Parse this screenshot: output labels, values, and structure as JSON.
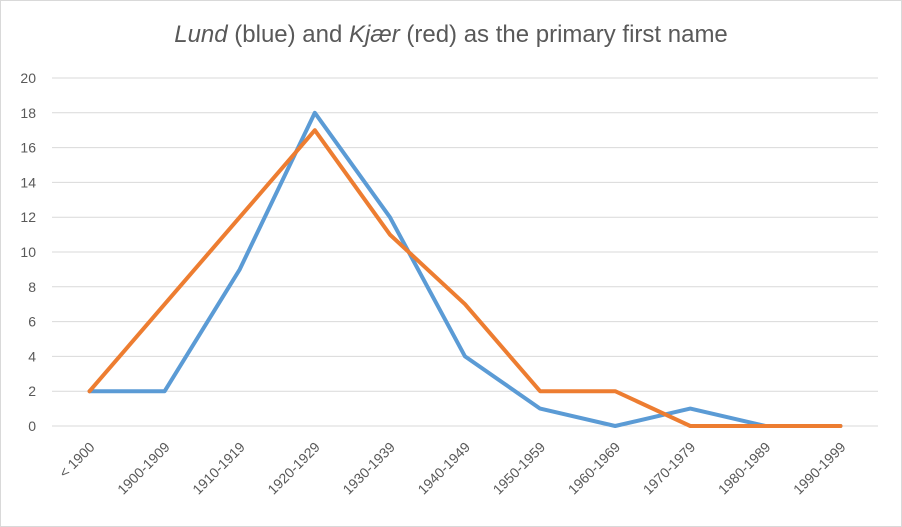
{
  "chart_data": {
    "type": "line",
    "title": {
      "part1": "Lund",
      "part2": " (blue) and ",
      "part3": "Kjær",
      "part4": " (red) as the primary first name"
    },
    "categories": [
      "< 1900",
      "1900-1909",
      "1910-1919",
      "1920-1929",
      "1930-1939",
      "1940-1949",
      "1950-1959",
      "1960-1969",
      "1970-1979",
      "1980-1989",
      "1990-1999"
    ],
    "series": [
      {
        "name": "",
        "color": "#5b9bd5",
        "values": [
          2,
          2,
          9,
          18,
          12,
          4,
          1,
          0,
          1,
          0,
          0
        ]
      },
      {
        "name": "",
        "color": "#ed7d31",
        "values": [
          2,
          7,
          12,
          17,
          11,
          7,
          2,
          2,
          0,
          0,
          0
        ]
      }
    ],
    "y_ticks": [
      "0",
      "2",
      "4",
      "6",
      "8",
      "10",
      "12",
      "14",
      "16",
      "18",
      "20"
    ],
    "ylim": [
      0,
      20
    ],
    "grid": true,
    "xlabel": "",
    "ylabel": ""
  }
}
